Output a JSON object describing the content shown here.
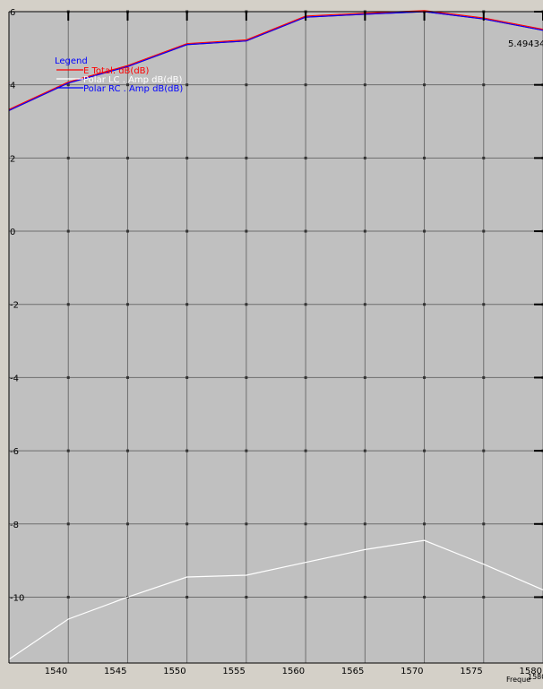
{
  "chart_data": {
    "type": "line",
    "title": "",
    "xlabel": "Freque",
    "ylabel": "",
    "xlim": [
      1535,
      1580
    ],
    "ylim": [
      -11.8,
      6
    ],
    "x_ticks": [
      1540,
      1545,
      1550,
      1555,
      1560,
      1565,
      1570,
      1575,
      1580
    ],
    "x_tick_labels": [
      "1540",
      "1545",
      "1550",
      "1555",
      "1560",
      "1565",
      "1570",
      "1575",
      "1580"
    ],
    "x_end_label": "1580",
    "y_ticks": [
      6,
      4,
      2,
      0,
      -2,
      -4,
      -6,
      -8,
      -10
    ],
    "y_tick_labels": [
      "6",
      "4",
      "2",
      "0",
      "-2",
      "-4",
      "-6",
      "-8",
      "-10"
    ],
    "grid": true,
    "legend": {
      "title": "Legend",
      "placement": "top-left"
    },
    "series": [
      {
        "name": "E Total. dB(dB)",
        "color": "#ff0000",
        "x": [
          1535,
          1540,
          1545,
          1550,
          1555,
          1560,
          1565,
          1570,
          1575,
          1580
        ],
        "values": [
          3.3,
          4.05,
          4.5,
          5.1,
          5.2,
          5.85,
          5.93,
          6.0,
          5.8,
          5.49
        ]
      },
      {
        "name": "Polar LC . Amp dB(dB)",
        "color": "#ffffff",
        "x": [
          1535,
          1540,
          1545,
          1550,
          1555,
          1560,
          1565,
          1570,
          1575,
          1580
        ],
        "values": [
          -11.7,
          -10.6,
          -10.0,
          -9.45,
          -9.4,
          -9.05,
          -8.7,
          -8.45,
          -9.1,
          -9.8
        ]
      },
      {
        "name": "Polar RC . Amp dB(dB)",
        "color": "#0000ff",
        "x": [
          1535,
          1540,
          1545,
          1550,
          1555,
          1560,
          1565,
          1570,
          1575,
          1580
        ],
        "values": [
          3.3,
          4.05,
          4.5,
          5.1,
          5.2,
          5.85,
          5.93,
          6.0,
          5.8,
          5.49
        ]
      }
    ],
    "annotations": [
      {
        "text": "5.49434",
        "color": "#0000ff"
      }
    ],
    "colors": {
      "plot_background": "#c0c0c0",
      "grid": "#6e6e6e",
      "page_background": "#d4d0c8"
    }
  }
}
